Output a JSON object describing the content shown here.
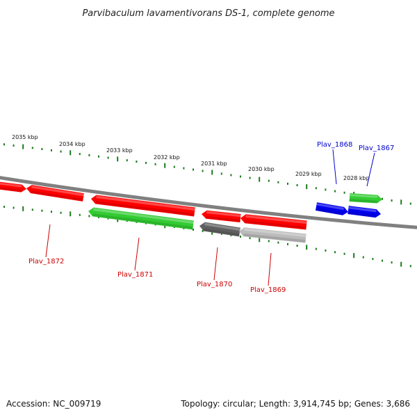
{
  "title": "Parvibaculum lavamentivorans DS-1, complete genome",
  "footer": {
    "accession": "Accession: NC_009719",
    "summary": "Topology: circular; Length: 3,914,745 bp; Genes: 3,686"
  },
  "colors": {
    "backbone": "#808080",
    "tick": "#1a7a1a",
    "gene_red": "#ff0000",
    "gene_green": "#33cc33",
    "gene_blue": "#0000ee",
    "gene_dark_gray": "#606060",
    "gene_light_gray": "#bbbbbb",
    "label_red": "#cc0000",
    "label_blue": "#0000cc"
  },
  "scale": {
    "unit": "kbp",
    "labels": [
      "2035 kbp",
      "2034 kbp",
      "2033 kbp",
      "2032 kbp",
      "2031 kbp",
      "2030 kbp",
      "2029 kbp",
      "2028 kbp"
    ]
  },
  "genes": [
    {
      "id": "gene-1",
      "strand": "forward",
      "color": "gene_red",
      "label": ""
    },
    {
      "id": "gene-2",
      "strand": "reverse",
      "color": "gene_red",
      "label": ""
    },
    {
      "id": "gene-3",
      "strand": "reverse",
      "color": "gene_red",
      "label": ""
    },
    {
      "id": "gene-4",
      "strand": "reverse",
      "color": "gene_green",
      "label": ""
    },
    {
      "id": "gene-5",
      "strand": "reverse",
      "color": "gene_red",
      "label": ""
    },
    {
      "id": "gene-6",
      "strand": "reverse",
      "color": "gene_dark_gray",
      "label": ""
    },
    {
      "id": "gene-7",
      "strand": "reverse",
      "color": "gene_red",
      "label": ""
    },
    {
      "id": "gene-8",
      "strand": "reverse",
      "color": "gene_light_gray",
      "label": ""
    },
    {
      "id": "gene-9",
      "strand": "forward",
      "color": "gene_blue",
      "label": ""
    },
    {
      "id": "gene-10",
      "strand": "forward",
      "color": "gene_green",
      "label": ""
    },
    {
      "id": "gene-11",
      "strand": "forward",
      "color": "gene_blue",
      "label": ""
    }
  ],
  "gene_labels": [
    {
      "text": "Plav_1872",
      "color": "label_red"
    },
    {
      "text": "Plav_1871",
      "color": "label_red"
    },
    {
      "text": "Plav_1870",
      "color": "label_red"
    },
    {
      "text": "Plav_1869",
      "color": "label_red"
    },
    {
      "text": "Plav_1868",
      "color": "label_blue"
    },
    {
      "text": "Plav_1867",
      "color": "label_blue"
    }
  ]
}
